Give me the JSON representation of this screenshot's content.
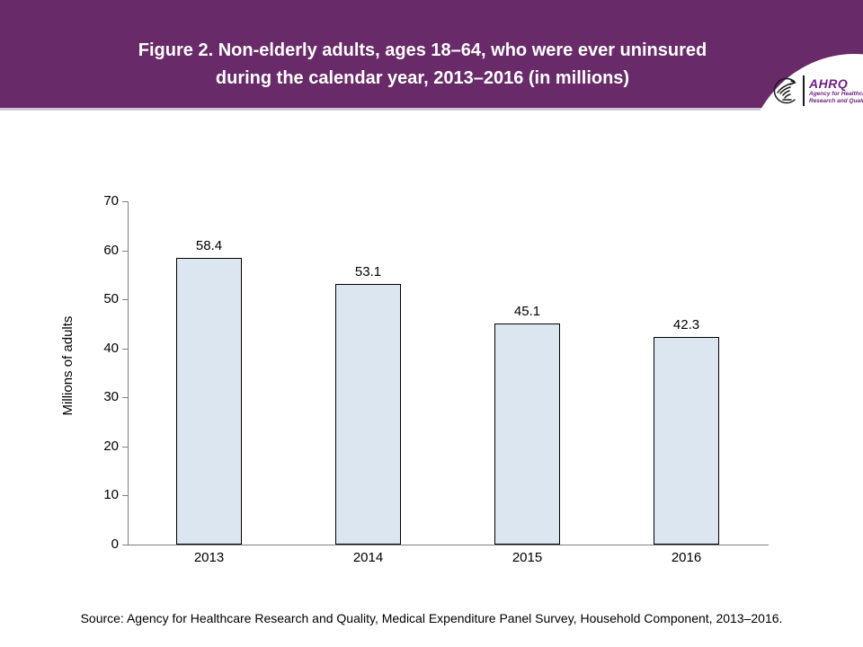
{
  "header": {
    "title_line1": "Figure 2. Non-elderly adults, ages 18–64, who were ever uninsured",
    "title_line2": "during the calendar year, 2013–2016 (in millions)",
    "logo": {
      "abbrev": "AHRQ",
      "tagline_line1": "Agency for Healthcare",
      "tagline_line2": "Research and Quality",
      "icon": "hhs-eagle-icon"
    }
  },
  "chart_data": {
    "type": "bar",
    "title": "Figure 2. Non-elderly adults, ages 18–64, who were ever uninsured during the calendar year, 2013–2016 (in millions)",
    "categories": [
      "2013",
      "2014",
      "2015",
      "2016"
    ],
    "values": [
      58.4,
      53.1,
      45.1,
      42.3
    ],
    "data_labels": [
      "58.4",
      "53.1",
      "45.1",
      "42.3"
    ],
    "xlabel": "",
    "ylabel": "Millions of adults",
    "ylim": [
      0,
      70
    ],
    "yticks": [
      0,
      10,
      20,
      30,
      40,
      50,
      60,
      70
    ],
    "grid": false,
    "legend": "none",
    "bar_fill": "#dce6f1",
    "bar_border": "#000000"
  },
  "footer": {
    "source": "Source: Agency for Healthcare Research and Quality, Medical Expenditure Panel Survey, Household Component, 2013–2016."
  },
  "colors": {
    "header_bg": "#682a68",
    "header_rule": "#d0c6dc",
    "logo_purple": "#6d2280",
    "axis_gray": "#7f7f7f",
    "bar_fill": "#dce6f1",
    "text": "#000000"
  }
}
